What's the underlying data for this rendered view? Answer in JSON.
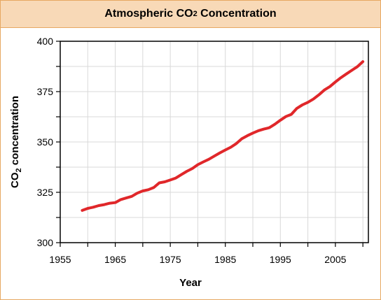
{
  "chart_data": {
    "type": "line",
    "title": {
      "main": "Atmospheric CO",
      "sub": "2",
      "rest": " Concentration"
    },
    "xlabel": "Year",
    "ylabel": {
      "main": "CO",
      "sub": "2",
      "rest": " concentration"
    },
    "xlim": [
      1955,
      2011
    ],
    "ylim": [
      300,
      400
    ],
    "xticks": [
      1955,
      1965,
      1975,
      1985,
      1995,
      2005
    ],
    "yticks": [
      300,
      325,
      350,
      375,
      400
    ],
    "grid": true,
    "line_color": "#e0272a",
    "series": [
      {
        "x": [
          1959,
          1960,
          1961,
          1962,
          1963,
          1964,
          1965,
          1966,
          1967,
          1968,
          1969,
          1970,
          1971,
          1972,
          1973,
          1974,
          1975,
          1976,
          1977,
          1978,
          1979,
          1980,
          1981,
          1982,
          1983,
          1984,
          1985,
          1986,
          1987,
          1988,
          1989,
          1990,
          1991,
          1992,
          1993,
          1994,
          1995,
          1996,
          1997,
          1998,
          1999,
          2000,
          2001,
          2002,
          2003,
          2004,
          2005,
          2006,
          2007,
          2008,
          2009,
          2010
        ],
        "values": [
          316.0,
          317.0,
          317.6,
          318.4,
          318.9,
          319.6,
          319.9,
          321.4,
          322.2,
          323.0,
          324.6,
          325.7,
          326.3,
          327.4,
          329.7,
          330.2,
          331.1,
          332.1,
          333.8,
          335.4,
          336.8,
          338.7,
          340.1,
          341.4,
          343.0,
          344.6,
          346.0,
          347.4,
          349.2,
          351.6,
          353.1,
          354.4,
          355.6,
          356.4,
          357.1,
          358.8,
          360.8,
          362.6,
          363.7,
          366.7,
          368.4,
          369.7,
          371.3,
          373.4,
          375.8,
          377.5,
          379.8,
          381.9,
          383.8,
          385.6,
          387.4,
          389.9
        ]
      }
    ]
  }
}
